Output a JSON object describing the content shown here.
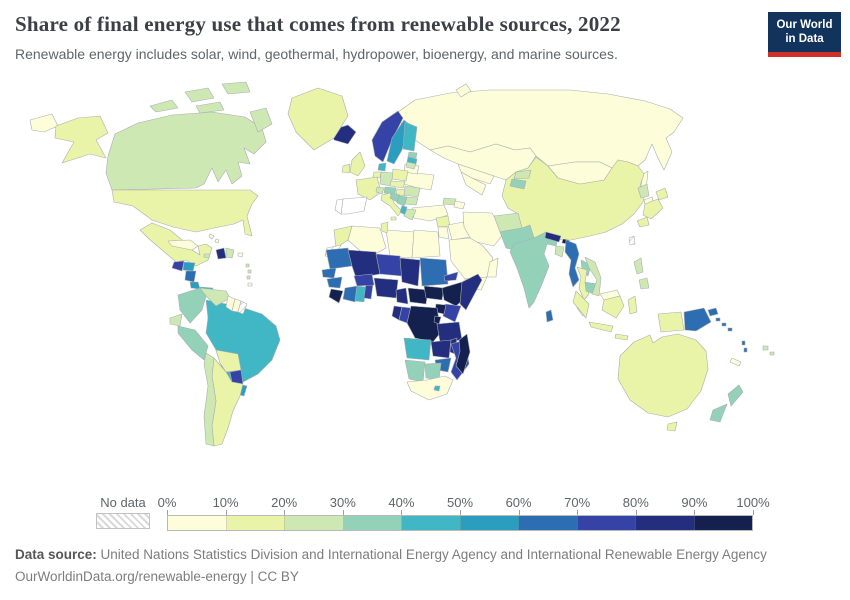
{
  "header": {
    "title": "Share of final energy use that comes from renewable sources, 2022",
    "subtitle": "Renewable energy includes solar, wind, geothermal, hydropower, bioenergy, and marine sources.",
    "logo": {
      "line1": "Our World",
      "line2": "in Data"
    }
  },
  "legend": {
    "no_data_label": "No data",
    "tick_labels": [
      "0%",
      "10%",
      "20%",
      "30%",
      "40%",
      "50%",
      "60%",
      "70%",
      "80%",
      "90%",
      "100%"
    ]
  },
  "footer": {
    "source_label": "Data source:",
    "source_text": " United Nations Statistics Division and International Energy Agency and International Renewable Energy Agency",
    "link_line": "OurWorldinData.org/renewable-energy | CC BY"
  },
  "colors": {
    "logo_bg": "#12335c",
    "logo_accent": "#cf3129",
    "ocean": "#ffffff",
    "border": "#a9aeb0",
    "title_text": "#3a4045",
    "muted_text": "#5f6569"
  },
  "chart_data": {
    "type": "choropleth",
    "title": "Share of final energy use that comes from renewable sources, 2022",
    "year": 2022,
    "unit": "Share of final energy use from renewable sources (%)",
    "legend_min": 0,
    "legend_max": 100,
    "bin_size": 10,
    "no_data": {
      "label": "No data",
      "pattern": "hatched"
    },
    "bins": [
      {
        "label": "0-10%",
        "color": "#fefdda"
      },
      {
        "label": "10-20%",
        "color": "#e9f4a8"
      },
      {
        "label": "20-30%",
        "color": "#cde8b3"
      },
      {
        "label": "30-40%",
        "color": "#93d2b9"
      },
      {
        "label": "40-50%",
        "color": "#41b6c4"
      },
      {
        "label": "50-60%",
        "color": "#2b9ec0"
      },
      {
        "label": "60-70%",
        "color": "#2d6eb3"
      },
      {
        "label": "70-80%",
        "color": "#3443a5"
      },
      {
        "label": "80-90%",
        "color": "#232e7f"
      },
      {
        "label": "90-100%",
        "color": "#14204e"
      }
    ],
    "countries": [
      {
        "id": "united-states",
        "name": "United States",
        "bin": 1
      },
      {
        "id": "canada",
        "name": "Canada",
        "bin": 2
      },
      {
        "id": "greenland",
        "name": "Greenland",
        "bin": 1
      },
      {
        "id": "mexico",
        "name": "Mexico",
        "bin": 1
      },
      {
        "id": "guatemala",
        "name": "Guatemala",
        "bin": 7
      },
      {
        "id": "honduras",
        "name": "Honduras",
        "bin": 5
      },
      {
        "id": "nicaragua",
        "name": "Nicaragua",
        "bin": 6
      },
      {
        "id": "costa-rica",
        "name": "Costa Rica",
        "bin": 5
      },
      {
        "id": "panama",
        "name": "Panama",
        "bin": 4
      },
      {
        "id": "cuba",
        "name": "Cuba",
        "bin": 0
      },
      {
        "id": "jamaica",
        "name": "Jamaica",
        "bin": 2
      },
      {
        "id": "haiti",
        "name": "Haiti",
        "bin": 8
      },
      {
        "id": "dominican-republic",
        "name": "Dominican Republic",
        "bin": 2
      },
      {
        "id": "puerto-rico",
        "name": "Puerto Rico",
        "bin": 0
      },
      {
        "id": "bahamas",
        "name": "Bahamas",
        "bin": 0
      },
      {
        "id": "lesser-antilles",
        "name": "Lesser Antilles",
        "bin": 2
      },
      {
        "id": "trinidad-and-tobago",
        "name": "Trinidad and Tobago",
        "bin": 0
      },
      {
        "id": "colombia",
        "name": "Colombia",
        "bin": 3
      },
      {
        "id": "venezuela",
        "name": "Venezuela",
        "bin": 2
      },
      {
        "id": "guyana",
        "name": "Guyana",
        "bin": 0
      },
      {
        "id": "suriname",
        "name": "Suriname",
        "bin": 0
      },
      {
        "id": "french-guiana",
        "name": "French Guiana",
        "bin": null
      },
      {
        "id": "ecuador",
        "name": "Ecuador",
        "bin": 2
      },
      {
        "id": "peru",
        "name": "Peru",
        "bin": 3
      },
      {
        "id": "brazil",
        "name": "Brazil",
        "bin": 4
      },
      {
        "id": "bolivia",
        "name": "Bolivia",
        "bin": 1
      },
      {
        "id": "paraguay",
        "name": "Paraguay",
        "bin": 7
      },
      {
        "id": "uruguay",
        "name": "Uruguay",
        "bin": 5
      },
      {
        "id": "argentina",
        "name": "Argentina",
        "bin": 1
      },
      {
        "id": "chile",
        "name": "Chile",
        "bin": 2
      },
      {
        "id": "iceland",
        "name": "Iceland",
        "bin": 8
      },
      {
        "id": "norway",
        "name": "Norway",
        "bin": 7
      },
      {
        "id": "sweden",
        "name": "Sweden",
        "bin": 5
      },
      {
        "id": "finland",
        "name": "Finland",
        "bin": 4
      },
      {
        "id": "denmark",
        "name": "Denmark",
        "bin": 4
      },
      {
        "id": "estonia",
        "name": "Estonia",
        "bin": 3
      },
      {
        "id": "latvia",
        "name": "Latvia",
        "bin": 4
      },
      {
        "id": "lithuania",
        "name": "Lithuania",
        "bin": 2
      },
      {
        "id": "united-kingdom",
        "name": "United Kingdom",
        "bin": 1
      },
      {
        "id": "ireland",
        "name": "Ireland",
        "bin": 1
      },
      {
        "id": "france",
        "name": "France",
        "bin": 1
      },
      {
        "id": "belgium-netherlands",
        "name": "Belgium & Netherlands",
        "bin": 1
      },
      {
        "id": "germany",
        "name": "Germany",
        "bin": 2
      },
      {
        "id": "switzerland",
        "name": "Switzerland",
        "bin": 2
      },
      {
        "id": "austria",
        "name": "Austria",
        "bin": 3
      },
      {
        "id": "czech-slovakia",
        "name": "Czechia & Slovakia",
        "bin": 1
      },
      {
        "id": "poland",
        "name": "Poland",
        "bin": 1
      },
      {
        "id": "hungary",
        "name": "Hungary",
        "bin": 1
      },
      {
        "id": "italy",
        "name": "Italy",
        "bin": 1
      },
      {
        "id": "croatia-slovenia",
        "name": "Croatia & Slovenia",
        "bin": 3
      },
      {
        "id": "serbia-bosnia",
        "name": "Serbia & Bosnia",
        "bin": 3
      },
      {
        "id": "albania-montenegro",
        "name": "Albania & Montenegro",
        "bin": 4
      },
      {
        "id": "greece",
        "name": "Greece",
        "bin": 2
      },
      {
        "id": "romania",
        "name": "Romania",
        "bin": 2
      },
      {
        "id": "bulgaria",
        "name": "Bulgaria",
        "bin": 2
      },
      {
        "id": "ukraine",
        "name": "Ukraine",
        "bin": 0
      },
      {
        "id": "belarus",
        "name": "Belarus",
        "bin": 0
      },
      {
        "id": "russia",
        "name": "Russia",
        "bin": 0
      },
      {
        "id": "kazakhstan",
        "name": "Kazakhstan",
        "bin": 0
      },
      {
        "id": "uzbekistan",
        "name": "Uzbekistan",
        "bin": 0
      },
      {
        "id": "turkmenistan",
        "name": "Turkmenistan",
        "bin": 0
      },
      {
        "id": "kyrgyzstan",
        "name": "Kyrgyzstan",
        "bin": 2
      },
      {
        "id": "tajikistan",
        "name": "Tajikistan",
        "bin": 3
      },
      {
        "id": "georgia",
        "name": "Georgia",
        "bin": 2
      },
      {
        "id": "azerbaijan",
        "name": "Azerbaijan",
        "bin": 0
      },
      {
        "id": "turkey",
        "name": "Turkey",
        "bin": 0
      },
      {
        "id": "syria",
        "name": "Syria",
        "bin": 1
      },
      {
        "id": "jordan-israel",
        "name": "Jordan & Israel",
        "bin": 0
      },
      {
        "id": "iraq",
        "name": "Iraq",
        "bin": 0
      },
      {
        "id": "iran",
        "name": "Iran",
        "bin": 0
      },
      {
        "id": "saudi-arabia",
        "name": "Saudi Arabia",
        "bin": 0
      },
      {
        "id": "yemen",
        "name": "Yemen",
        "bin": 0
      },
      {
        "id": "oman",
        "name": "Oman",
        "bin": 0
      },
      {
        "id": "afghanistan",
        "name": "Afghanistan",
        "bin": 2
      },
      {
        "id": "pakistan",
        "name": "Pakistan",
        "bin": 3
      },
      {
        "id": "india",
        "name": "India",
        "bin": 3
      },
      {
        "id": "nepal",
        "name": "Nepal",
        "bin": 8
      },
      {
        "id": "bhutan",
        "name": "Bhutan",
        "bin": 9
      },
      {
        "id": "bangladesh",
        "name": "Bangladesh",
        "bin": 2
      },
      {
        "id": "sri-lanka",
        "name": "Sri Lanka",
        "bin": 6
      },
      {
        "id": "myanmar",
        "name": "Myanmar",
        "bin": 6
      },
      {
        "id": "laos",
        "name": "Laos",
        "bin": 3
      },
      {
        "id": "thailand",
        "name": "Thailand",
        "bin": 1
      },
      {
        "id": "cambodia",
        "name": "Cambodia",
        "bin": 3
      },
      {
        "id": "vietnam",
        "name": "Vietnam",
        "bin": 2
      },
      {
        "id": "malaysia",
        "name": "Malaysia",
        "bin": 0
      },
      {
        "id": "indonesia",
        "name": "Indonesia",
        "bin": 1
      },
      {
        "id": "philippines",
        "name": "Philippines",
        "bin": 2
      },
      {
        "id": "china",
        "name": "China",
        "bin": 1
      },
      {
        "id": "mongolia",
        "name": "Mongolia",
        "bin": 0
      },
      {
        "id": "north-korea",
        "name": "North Korea",
        "bin": 2
      },
      {
        "id": "south-korea",
        "name": "South Korea",
        "bin": 0
      },
      {
        "id": "japan",
        "name": "Japan",
        "bin": 1
      },
      {
        "id": "taiwan",
        "name": "Taiwan",
        "bin": null
      },
      {
        "id": "papua-new-guinea",
        "name": "Papua New Guinea",
        "bin": 6
      },
      {
        "id": "solomon-islands",
        "name": "Solomon Islands",
        "bin": 6
      },
      {
        "id": "vanuatu",
        "name": "Vanuatu",
        "bin": 6
      },
      {
        "id": "fiji",
        "name": "Fiji",
        "bin": 2
      },
      {
        "id": "new-caledonia",
        "name": "New Caledonia",
        "bin": 0
      },
      {
        "id": "australia",
        "name": "Australia",
        "bin": 1
      },
      {
        "id": "new-zealand",
        "name": "New Zealand",
        "bin": 3
      },
      {
        "id": "morocco",
        "name": "Morocco",
        "bin": 1
      },
      {
        "id": "western-sahara",
        "name": "Western Sahara",
        "bin": null
      },
      {
        "id": "algeria",
        "name": "Algeria",
        "bin": 0
      },
      {
        "id": "tunisia",
        "name": "Tunisia",
        "bin": 1
      },
      {
        "id": "libya",
        "name": "Libya",
        "bin": 0
      },
      {
        "id": "egypt",
        "name": "Egypt",
        "bin": 0
      },
      {
        "id": "mauritania",
        "name": "Mauritania",
        "bin": 6
      },
      {
        "id": "mali",
        "name": "Mali",
        "bin": 8
      },
      {
        "id": "niger",
        "name": "Niger",
        "bin": 7
      },
      {
        "id": "chad",
        "name": "Chad",
        "bin": 8
      },
      {
        "id": "sudan",
        "name": "Sudan",
        "bin": 6
      },
      {
        "id": "eritrea",
        "name": "Eritrea",
        "bin": 7
      },
      {
        "id": "senegal",
        "name": "Senegal",
        "bin": 6
      },
      {
        "id": "guinea",
        "name": "Guinea",
        "bin": 6
      },
      {
        "id": "sierra-leone-liberia",
        "name": "Sierra Leone & Liberia",
        "bin": 9
      },
      {
        "id": "ivory-coast",
        "name": "Cote d'Ivoire",
        "bin": 6
      },
      {
        "id": "ghana",
        "name": "Ghana",
        "bin": 4
      },
      {
        "id": "togo-benin",
        "name": "Togo & Benin",
        "bin": 7
      },
      {
        "id": "burkina-faso",
        "name": "Burkina Faso",
        "bin": 7
      },
      {
        "id": "nigeria",
        "name": "Nigeria",
        "bin": 8
      },
      {
        "id": "cameroon",
        "name": "Cameroon",
        "bin": 8
      },
      {
        "id": "central-african-republic",
        "name": "Central African Republic",
        "bin": 9
      },
      {
        "id": "south-sudan",
        "name": "South Sudan",
        "bin": 9
      },
      {
        "id": "ethiopia",
        "name": "Ethiopia",
        "bin": 9
      },
      {
        "id": "somalia",
        "name": "Somalia",
        "bin": 8
      },
      {
        "id": "kenya",
        "name": "Kenya",
        "bin": 7
      },
      {
        "id": "uganda",
        "name": "Uganda",
        "bin": 9
      },
      {
        "id": "gabon",
        "name": "Gabon",
        "bin": 8
      },
      {
        "id": "congo",
        "name": "Congo",
        "bin": 7
      },
      {
        "id": "dr-congo",
        "name": "Democratic Republic of Congo",
        "bin": 9
      },
      {
        "id": "rwanda-burundi",
        "name": "Rwanda & Burundi",
        "bin": 9
      },
      {
        "id": "tanzania",
        "name": "Tanzania",
        "bin": 8
      },
      {
        "id": "angola",
        "name": "Angola",
        "bin": 4
      },
      {
        "id": "zambia",
        "name": "Zambia",
        "bin": 8
      },
      {
        "id": "malawi",
        "name": "Malawi",
        "bin": 8
      },
      {
        "id": "mozambique",
        "name": "Mozambique",
        "bin": 7
      },
      {
        "id": "zimbabwe",
        "name": "Zimbabwe",
        "bin": 6
      },
      {
        "id": "botswana",
        "name": "Botswana",
        "bin": 3
      },
      {
        "id": "namibia",
        "name": "Namibia",
        "bin": 3
      },
      {
        "id": "south-africa",
        "name": "South Africa",
        "bin": 0
      },
      {
        "id": "lesotho",
        "name": "Lesotho",
        "bin": 4
      },
      {
        "id": "madagascar",
        "name": "Madagascar",
        "bin": 9
      }
    ]
  }
}
